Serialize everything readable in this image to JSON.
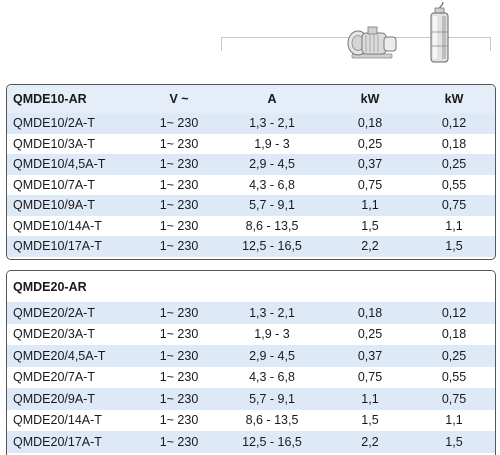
{
  "header": {
    "icons": [
      "surface-pump-icon",
      "submersible-pump-icon"
    ]
  },
  "colors": {
    "row_stripe": "#dde9f7",
    "border": "#555555"
  },
  "table1": {
    "columns": [
      "QMDE10-AR",
      "V ~",
      "A",
      "kW",
      "kW"
    ],
    "rows": [
      [
        "QMDE10/2A-T",
        "1~ 230",
        "1,3 - 2,1",
        "0,18",
        "0,12"
      ],
      [
        "QMDE10/3A-T",
        "1~ 230",
        "1,9 - 3",
        "0,25",
        "0,18"
      ],
      [
        "QMDE10/4,5A-T",
        "1~ 230",
        "2,9 - 4,5",
        "0,37",
        "0,25"
      ],
      [
        "QMDE10/7A-T",
        "1~ 230",
        "4,3 - 6,8",
        "0,75",
        "0,55"
      ],
      [
        "QMDE10/9A-T",
        "1~ 230",
        "5,7 - 9,1",
        "1,1",
        "0,75"
      ],
      [
        "QMDE10/14A-T",
        "1~ 230",
        "8,6 - 13,5",
        "1,5",
        "1,1"
      ],
      [
        "QMDE10/17A-T",
        "1~ 230",
        "12,5 - 16,5",
        "2,2",
        "1,5"
      ]
    ]
  },
  "table2": {
    "columns": [
      "QMDE20-AR",
      "",
      "",
      "",
      ""
    ],
    "rows": [
      [
        "QMDE20/2A-T",
        "1~ 230",
        "1,3 - 2,1",
        "0,18",
        "0,12"
      ],
      [
        "QMDE20/3A-T",
        "1~ 230",
        "1,9 - 3",
        "0,25",
        "0,18"
      ],
      [
        "QMDE20/4,5A-T",
        "1~ 230",
        "2,9 - 4,5",
        "0,37",
        "0,25"
      ],
      [
        "QMDE20/7A-T",
        "1~ 230",
        "4,3 - 6,8",
        "0,75",
        "0,55"
      ],
      [
        "QMDE20/9A-T",
        "1~ 230",
        "5,7 - 9,1",
        "1,1",
        "0,75"
      ],
      [
        "QMDE20/14A-T",
        "1~ 230",
        "8,6 - 13,5",
        "1,5",
        "1,1"
      ],
      [
        "QMDE20/17A-T",
        "1~ 230",
        "12,5 - 16,5",
        "2,2",
        "1,5"
      ]
    ]
  }
}
